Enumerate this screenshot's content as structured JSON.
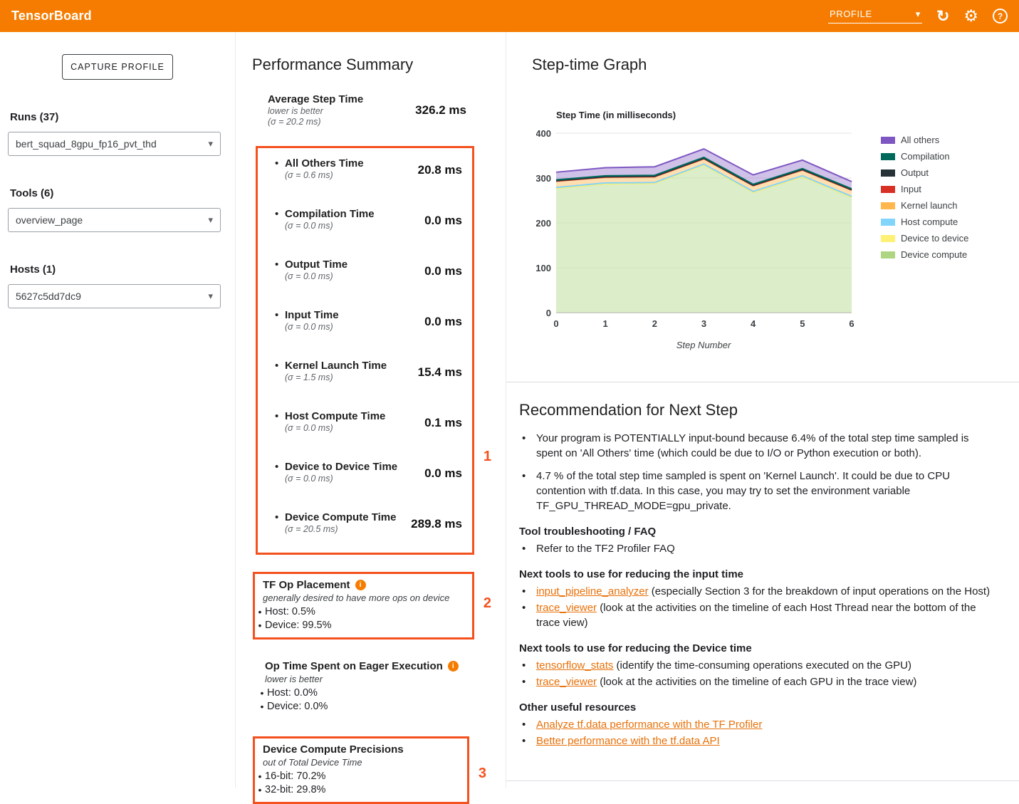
{
  "header": {
    "app_title": "TensorBoard",
    "dashboard": "PROFILE"
  },
  "icons": {
    "caret": "▾",
    "refresh": "↻",
    "settings": "⚙",
    "help": "?",
    "info": "i"
  },
  "sidebar": {
    "capture_button": "CAPTURE PROFILE",
    "runs_label": "Runs (37)",
    "runs_value": "bert_squad_8gpu_fp16_pvt_thd",
    "tools_label": "Tools (6)",
    "tools_value": "overview_page",
    "hosts_label": "Hosts (1)",
    "hosts_value": "5627c5dd7dc9"
  },
  "summary": {
    "title": "Performance Summary",
    "average": {
      "label": "Average Step Time",
      "sub1": "lower is better",
      "sub2": "(σ = 20.2 ms)",
      "value": "326.2 ms"
    },
    "metrics": [
      {
        "label": "All Others Time",
        "sigma": "(σ = 0.6 ms)",
        "value": "20.8 ms"
      },
      {
        "label": "Compilation Time",
        "sigma": "(σ = 0.0 ms)",
        "value": "0.0 ms"
      },
      {
        "label": "Output Time",
        "sigma": "(σ = 0.0 ms)",
        "value": "0.0 ms"
      },
      {
        "label": "Input Time",
        "sigma": "(σ = 0.0 ms)",
        "value": "0.0 ms"
      },
      {
        "label": "Kernel Launch Time",
        "sigma": "(σ = 1.5 ms)",
        "value": "15.4 ms"
      },
      {
        "label": "Host Compute Time",
        "sigma": "(σ = 0.0 ms)",
        "value": "0.1 ms"
      },
      {
        "label": "Device to Device Time",
        "sigma": "(σ = 0.0 ms)",
        "value": "0.0 ms"
      },
      {
        "label": "Device Compute Time",
        "sigma": "(σ = 20.5 ms)",
        "value": "289.8 ms"
      }
    ],
    "annotations": {
      "box1": "1",
      "box2": "2",
      "box3": "3"
    },
    "tf_op": {
      "title": "TF Op Placement",
      "sub": "generally desired to have more ops on device",
      "items": [
        "Host: 0.5%",
        "Device: 99.5%"
      ]
    },
    "eager": {
      "title": "Op Time Spent on Eager Execution",
      "sub": "lower is better",
      "items": [
        "Host: 0.0%",
        "Device: 0.0%"
      ]
    },
    "precision": {
      "title": "Device Compute Precisions",
      "sub": "out of Total Device Time",
      "items": [
        "16-bit: 70.2%",
        "32-bit: 29.8%"
      ]
    }
  },
  "steptime": {
    "title": "Step-time Graph"
  },
  "chart_data": {
    "type": "area",
    "stacked": true,
    "title": "Step Time (in milliseconds)",
    "xlabel": "Step Number",
    "x": [
      0,
      1,
      2,
      3,
      4,
      5,
      6
    ],
    "ylim": [
      0,
      400
    ],
    "yticks": [
      0,
      100,
      200,
      300,
      400
    ],
    "legend_position": "right",
    "grid": true,
    "series": [
      {
        "name": "All others",
        "color": "#7e57c2",
        "fill": "#9575cd",
        "fill_opacity": 0.45,
        "values": [
          17,
          18,
          19,
          19,
          21,
          19,
          16
        ]
      },
      {
        "name": "Compilation",
        "color": "#00695c",
        "fill": "#00695c",
        "fill_opacity": 0.35,
        "values": [
          2,
          2,
          2,
          2,
          2,
          2,
          2
        ]
      },
      {
        "name": "Output",
        "color": "#263238",
        "fill": "#263238",
        "fill_opacity": 0.35,
        "values": [
          1,
          1,
          1,
          1,
          1,
          1,
          1
        ]
      },
      {
        "name": "Input",
        "color": "#d93025",
        "fill": "#d93025",
        "fill_opacity": 0.35,
        "values": [
          0,
          0,
          0,
          0,
          0,
          0,
          0
        ]
      },
      {
        "name": "Kernel launch",
        "color": "#ffb74d",
        "fill": "#ffb74d",
        "fill_opacity": 0.45,
        "values": [
          14,
          13,
          13,
          12,
          13,
          13,
          14
        ]
      },
      {
        "name": "Host compute",
        "color": "#81d4fa",
        "fill": "#81d4fa",
        "fill_opacity": 0.4,
        "values": [
          2,
          2,
          2,
          2,
          2,
          2,
          2
        ]
      },
      {
        "name": "Device to device",
        "color": "#fff176",
        "fill": "#fff176",
        "fill_opacity": 0.4,
        "values": [
          0,
          0,
          0,
          0,
          0,
          0,
          0
        ]
      },
      {
        "name": "Device compute",
        "color": "#aed581",
        "fill": "#c5e1a5",
        "fill_opacity": 0.6,
        "values": [
          277,
          287,
          288,
          329,
          268,
          303,
          257
        ]
      }
    ]
  },
  "recommendation": {
    "title": "Recommendation for Next Step",
    "bullets": [
      "Your program is POTENTIALLY input-bound because 6.4% of the total step time sampled is spent on 'All Others' time (which could be due to I/O or Python execution or both).",
      "4.7 % of the total step time sampled is spent on 'Kernel Launch'. It could be due to CPU contention with tf.data. In this case, you may try to set the environment variable TF_GPU_THREAD_MODE=gpu_private."
    ],
    "sections": [
      {
        "heading": "Tool troubleshooting / FAQ",
        "items": [
          {
            "pre": "Refer to the TF2 Profiler FAQ"
          }
        ]
      },
      {
        "heading": "Next tools to use for reducing the input time",
        "items": [
          {
            "link": "input_pipeline_analyzer",
            "post": " (especially Section 3 for the breakdown of input operations on the Host)"
          },
          {
            "link": "trace_viewer",
            "post": " (look at the activities on the timeline of each Host Thread near the bottom of the trace view)"
          }
        ]
      },
      {
        "heading": "Next tools to use for reducing the Device time",
        "items": [
          {
            "link": "tensorflow_stats",
            "post": " (identify the time-consuming operations executed on the GPU)"
          },
          {
            "link": "trace_viewer",
            "post": " (look at the activities on the timeline of each GPU in the trace view)"
          }
        ]
      },
      {
        "heading": "Other useful resources",
        "items": [
          {
            "link": "Analyze tf.data performance with the TF Profiler"
          },
          {
            "link": "Better performance with the tf.data API"
          }
        ]
      }
    ]
  }
}
